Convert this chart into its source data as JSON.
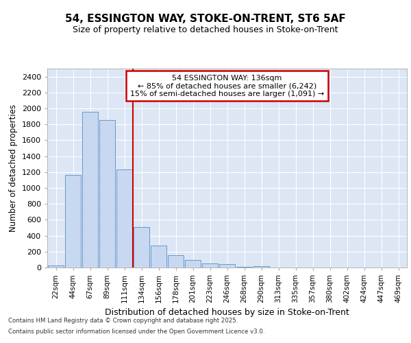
{
  "title_line1": "54, ESSINGTON WAY, STOKE-ON-TRENT, ST6 5AF",
  "title_line2": "Size of property relative to detached houses in Stoke-on-Trent",
  "xlabel": "Distribution of detached houses by size in Stoke-on-Trent",
  "ylabel": "Number of detached properties",
  "categories": [
    "22sqm",
    "44sqm",
    "67sqm",
    "89sqm",
    "111sqm",
    "134sqm",
    "156sqm",
    "178sqm",
    "201sqm",
    "223sqm",
    "246sqm",
    "268sqm",
    "290sqm",
    "313sqm",
    "335sqm",
    "357sqm",
    "380sqm",
    "402sqm",
    "424sqm",
    "447sqm",
    "469sqm"
  ],
  "values": [
    30,
    1165,
    1960,
    1850,
    1230,
    510,
    275,
    155,
    95,
    50,
    40,
    5,
    15,
    3,
    2,
    2,
    1,
    1,
    1,
    1,
    2
  ],
  "bar_color": "#c8d8f0",
  "bar_edge_color": "#6699cc",
  "annotation_text_line1": "54 ESSINGTON WAY: 136sqm",
  "annotation_text_line2": "← 85% of detached houses are smaller (6,242)",
  "annotation_text_line3": "15% of semi-detached houses are larger (1,091) →",
  "annotation_box_color": "#ffffff",
  "annotation_box_edge": "#cc0000",
  "vline_color": "#cc0000",
  "vline_x_index": 4.5,
  "ylim": [
    0,
    2500
  ],
  "yticks": [
    0,
    200,
    400,
    600,
    800,
    1000,
    1200,
    1400,
    1600,
    1800,
    2000,
    2200,
    2400
  ],
  "ax_background": "#dce6f5",
  "fig_background": "#ffffff",
  "grid_color": "#ffffff",
  "footer_line1": "Contains HM Land Registry data © Crown copyright and database right 2025.",
  "footer_line2": "Contains public sector information licensed under the Open Government Licence v3.0."
}
